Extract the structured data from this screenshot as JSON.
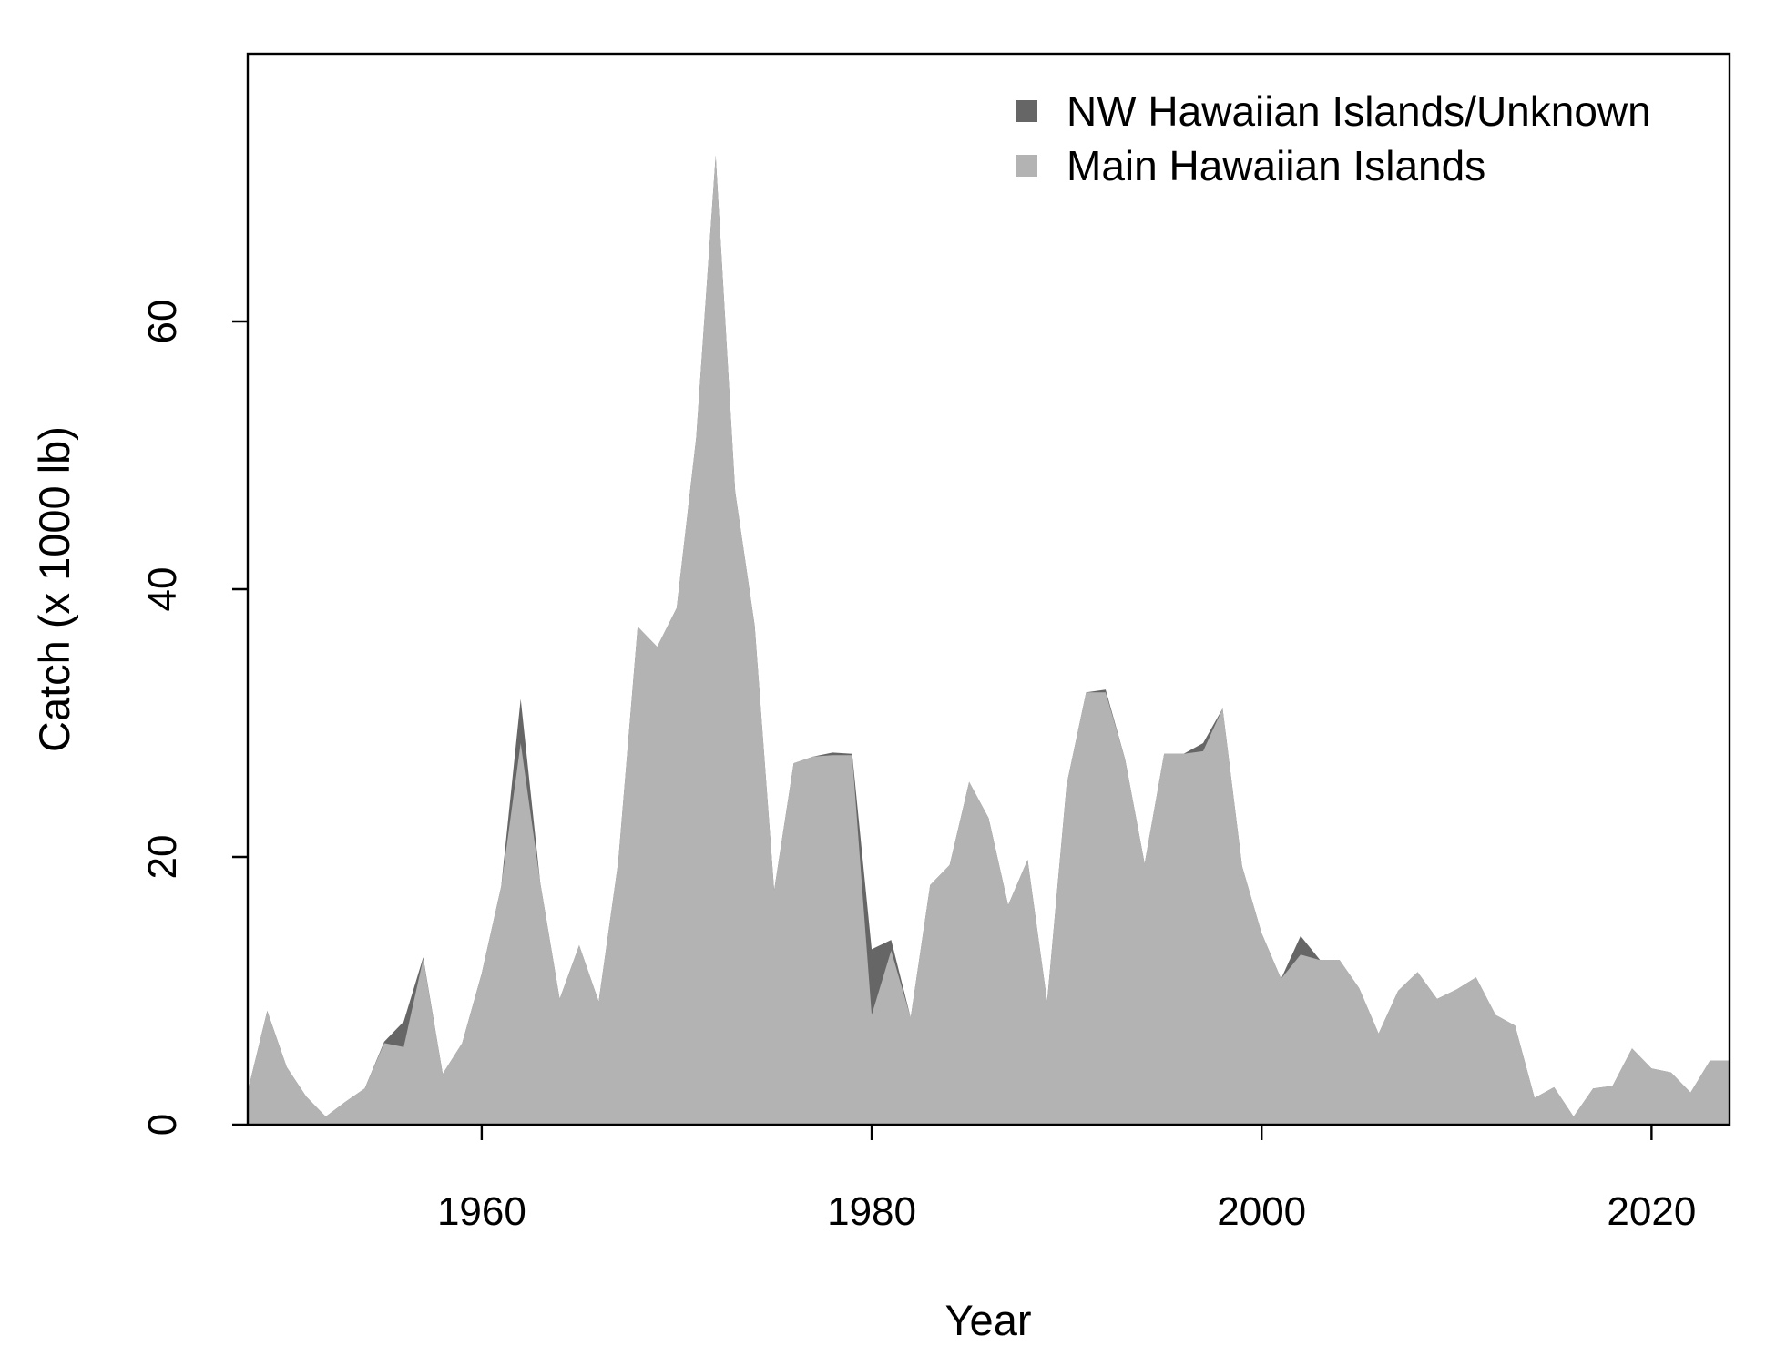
{
  "chart_data": {
    "type": "area",
    "stacked": true,
    "xlabel": "Year",
    "ylabel": "Catch (x 1000 lb)",
    "xlim": [
      1948,
      2024
    ],
    "ylim": [
      0,
      80
    ],
    "x_ticks": [
      1960,
      1980,
      2000,
      2020
    ],
    "y_ticks": [
      0,
      20,
      40,
      60
    ],
    "grid": false,
    "legend_position": "top-right",
    "x": [
      1948,
      1949,
      1950,
      1951,
      1952,
      1953,
      1954,
      1955,
      1956,
      1957,
      1958,
      1959,
      1960,
      1961,
      1962,
      1963,
      1964,
      1965,
      1966,
      1967,
      1968,
      1969,
      1970,
      1971,
      1972,
      1973,
      1974,
      1975,
      1976,
      1977,
      1978,
      1979,
      1980,
      1981,
      1982,
      1983,
      1984,
      1985,
      1986,
      1987,
      1988,
      1989,
      1990,
      1991,
      1992,
      1993,
      1994,
      1995,
      1996,
      1997,
      1998,
      1999,
      2000,
      2001,
      2002,
      2003,
      2004,
      2005,
      2006,
      2007,
      2008,
      2009,
      2010,
      2011,
      2012,
      2013,
      2014,
      2015,
      2016,
      2017,
      2018,
      2019,
      2020,
      2021,
      2022,
      2023,
      2024
    ],
    "series": [
      {
        "name": "Main Hawaiian Islands",
        "color": "#b3b3b3",
        "values": [
          2.5,
          8.5,
          4.3,
          2.1,
          0.6,
          1.7,
          2.7,
          6.1,
          5.8,
          12.4,
          3.8,
          6.1,
          11.3,
          17.8,
          28.5,
          18.1,
          9.4,
          13.4,
          9.2,
          19.6,
          37.2,
          35.7,
          38.6,
          51.3,
          72.4,
          47.3,
          37.3,
          17.5,
          27.0,
          27.5,
          27.6,
          27.6,
          8.2,
          13.0,
          8.0,
          17.9,
          19.4,
          25.6,
          22.9,
          16.4,
          19.8,
          9.2,
          25.4,
          32.3,
          32.3,
          27.3,
          19.5,
          27.7,
          27.7,
          27.9,
          31.1,
          19.3,
          14.3,
          10.9,
          12.7,
          12.3,
          12.3,
          10.2,
          6.8,
          10.0,
          11.4,
          9.4,
          10.1,
          11.0,
          8.2,
          7.4,
          2.0,
          2.8,
          0.6,
          2.7,
          2.9,
          5.7,
          4.2,
          3.9,
          2.4,
          4.8,
          4.8
        ]
      },
      {
        "name": "NW Hawaiian Islands/Unknown",
        "color": "#666666",
        "values": [
          0,
          0,
          0,
          0,
          0,
          0,
          0,
          0.1,
          1.9,
          0.1,
          0,
          0,
          0,
          0,
          3.3,
          0,
          0,
          0,
          0,
          0,
          0,
          0,
          0,
          0,
          0,
          0,
          0,
          0,
          0,
          0,
          0.2,
          0.1,
          4.9,
          0.8,
          0,
          0,
          0,
          0,
          0,
          0,
          0,
          0,
          0,
          0,
          0.2,
          0,
          0,
          0,
          0,
          0.6,
          0,
          0,
          0,
          0,
          1.4,
          0,
          0,
          0,
          0,
          0,
          0,
          0,
          0,
          0,
          0,
          0,
          0,
          0,
          0,
          0,
          0,
          0,
          0,
          0,
          0,
          0,
          0
        ]
      }
    ]
  }
}
